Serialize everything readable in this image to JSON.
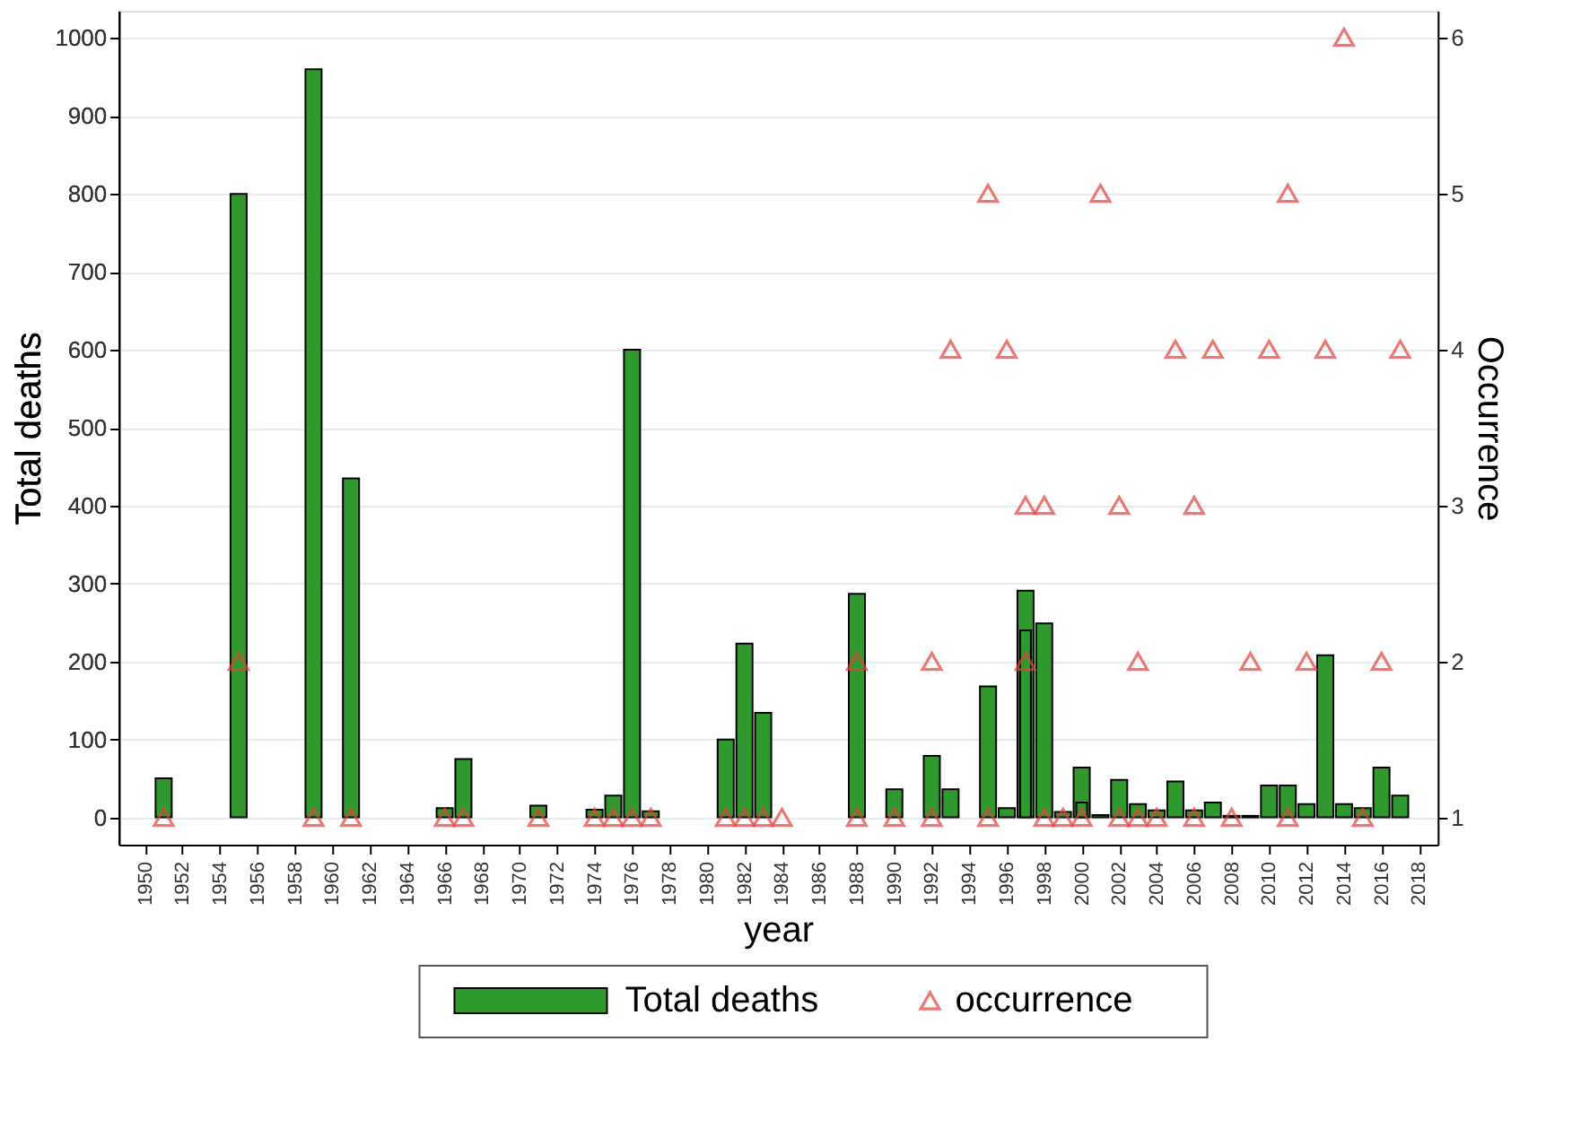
{
  "chart_data": {
    "type": "bar",
    "xlabel": "year",
    "ylabel": "Total deaths",
    "y2label": "Occurrence",
    "xlim": [
      1948.6,
      2019
    ],
    "xticks": [
      1950,
      1952,
      1954,
      1956,
      1958,
      1960,
      1962,
      1964,
      1966,
      1968,
      1970,
      1972,
      1974,
      1976,
      1978,
      1980,
      1982,
      1984,
      1986,
      1988,
      1990,
      1992,
      1994,
      1996,
      1998,
      2000,
      2002,
      2004,
      2006,
      2008,
      2010,
      2012,
      2014,
      2016,
      2018
    ],
    "ylim": [
      -35,
      1035
    ],
    "yticks": [
      0,
      100,
      200,
      300,
      400,
      500,
      600,
      700,
      800,
      900,
      1000
    ],
    "y2lim": [
      0.825,
      6.17
    ],
    "y2ticks": [
      1,
      2,
      3,
      4,
      5,
      6
    ],
    "grid": "y",
    "legend": "bottom",
    "series": [
      {
        "name": "Total deaths",
        "color": "#2e9a2e",
        "x": [
          1951,
          1955,
          1959,
          1961,
          1966,
          1967,
          1971,
          1974,
          1975,
          1976,
          1977,
          1981,
          1982,
          1983,
          1988,
          1990,
          1992,
          1993,
          1995,
          1996,
          1997,
          1998,
          1999,
          2000,
          2001,
          2002,
          2003,
          2004,
          2005,
          2006,
          2007,
          2008,
          2009,
          2010,
          2011,
          2012,
          2013,
          2014,
          2015,
          2016,
          2017
        ],
        "values": [
          50,
          800,
          960,
          435,
          12,
          75,
          15,
          10,
          28,
          600,
          8,
          100,
          223,
          134,
          287,
          36,
          79,
          36,
          168,
          12,
          291,
          249,
          7,
          64,
          3,
          48,
          17,
          9,
          46,
          9,
          19,
          2,
          2,
          41,
          41,
          17,
          208,
          17,
          12,
          64,
          28
        ]
      },
      {
        "color": "#2e9a2e",
        "x": [
          1997,
          2000
        ],
        "values": [
          240,
          19
        ]
      },
      {
        "name": "occurrence",
        "type": "scatter",
        "axis": "y2",
        "marker": "triangle",
        "color": "#e8413a",
        "x": [
          1951,
          1959,
          1961,
          1966,
          1967,
          1971,
          1974,
          1975,
          1976,
          1977,
          1981,
          1982,
          1983,
          1984,
          1988,
          1990,
          1992,
          1995,
          1998,
          1999,
          2000,
          2002,
          2003,
          2004,
          2006,
          2008,
          2011,
          2015,
          1955,
          1988,
          1992,
          1997,
          2003,
          2009,
          2012,
          2016,
          1997,
          1998,
          2002,
          2006,
          1993,
          1996,
          2005,
          2007,
          2010,
          2013,
          2017,
          1995,
          2001,
          2011,
          2014
        ],
        "values": [
          1,
          1,
          1,
          1,
          1,
          1,
          1,
          1,
          1,
          1,
          1,
          1,
          1,
          1,
          1,
          1,
          1,
          1,
          1,
          1,
          1,
          1,
          1,
          1,
          1,
          1,
          1,
          1,
          2,
          2,
          2,
          2,
          2,
          2,
          2,
          2,
          3,
          3,
          3,
          3,
          4,
          4,
          4,
          4,
          4,
          4,
          4,
          5,
          5,
          5,
          6
        ]
      }
    ]
  }
}
